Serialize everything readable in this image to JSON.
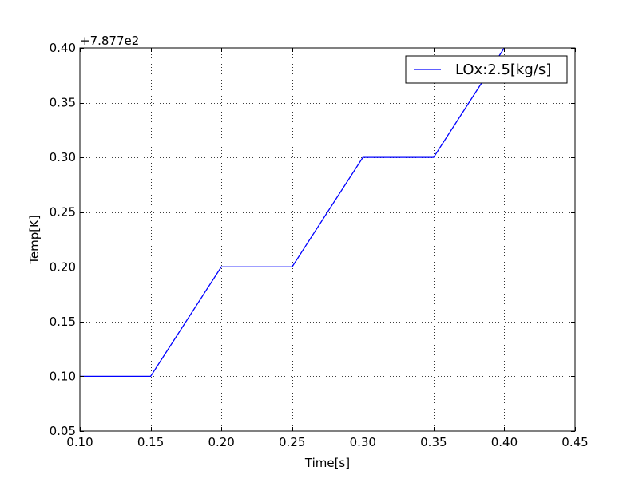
{
  "chart_data": {
    "type": "line",
    "title": "",
    "xlabel": "Time[s]",
    "ylabel": "Temp[K]",
    "offset_label": "+7.877e2",
    "xlim": [
      0.1,
      0.45
    ],
    "ylim": [
      0.05,
      0.4
    ],
    "xticks": [
      0.1,
      0.15,
      0.2,
      0.25,
      0.3,
      0.35,
      0.4,
      0.45
    ],
    "yticks": [
      0.05,
      0.1,
      0.15,
      0.2,
      0.25,
      0.3,
      0.35,
      0.4
    ],
    "xtick_labels": [
      "0.10",
      "0.15",
      "0.20",
      "0.25",
      "0.30",
      "0.35",
      "0.40",
      "0.45"
    ],
    "ytick_labels": [
      "0.05",
      "0.10",
      "0.15",
      "0.20",
      "0.25",
      "0.30",
      "0.35",
      "0.40"
    ],
    "grid": true,
    "legend_position": "top-right",
    "series": [
      {
        "name": "LOx:2.5[kg/s]",
        "color": "#0000ff",
        "x": [
          0.1,
          0.15,
          0.2,
          0.25,
          0.3,
          0.35,
          0.4
        ],
        "y": [
          0.1,
          0.1,
          0.2,
          0.2,
          0.3,
          0.3,
          0.4
        ]
      }
    ]
  }
}
